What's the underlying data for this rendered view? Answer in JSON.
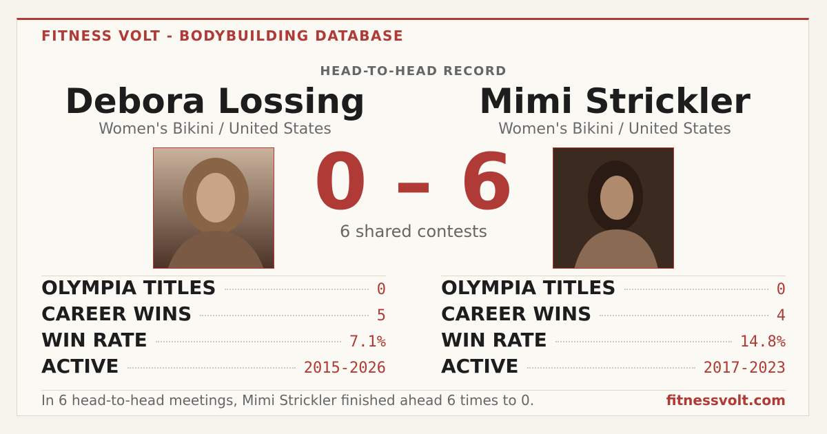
{
  "header": {
    "brand": "FITNESS VOLT - BODYBUILDING DATABASE",
    "subtitle": "HEAD-TO-HEAD RECORD"
  },
  "competitors": [
    {
      "name": "Debora Lossing",
      "division": "Women's Bikini / United States",
      "stats": [
        {
          "label": "OLYMPIA TITLES",
          "value": "0"
        },
        {
          "label": "CAREER WINS",
          "value": "5"
        },
        {
          "label": "WIN RATE",
          "value": "7.1%"
        },
        {
          "label": "ACTIVE",
          "value": "2015-2026"
        }
      ]
    },
    {
      "name": "Mimi Strickler",
      "division": "Women's Bikini / United States",
      "stats": [
        {
          "label": "OLYMPIA TITLES",
          "value": "0"
        },
        {
          "label": "CAREER WINS",
          "value": "4"
        },
        {
          "label": "WIN RATE",
          "value": "14.8%"
        },
        {
          "label": "ACTIVE",
          "value": "2017-2023"
        }
      ]
    }
  ],
  "score": {
    "text": "0 – 6",
    "caption": "6 shared contests"
  },
  "footer": {
    "summary": "In 6 head-to-head meetings, Mimi Strickler finished ahead 6 times to 0.",
    "site": "fitnessvolt.com"
  }
}
